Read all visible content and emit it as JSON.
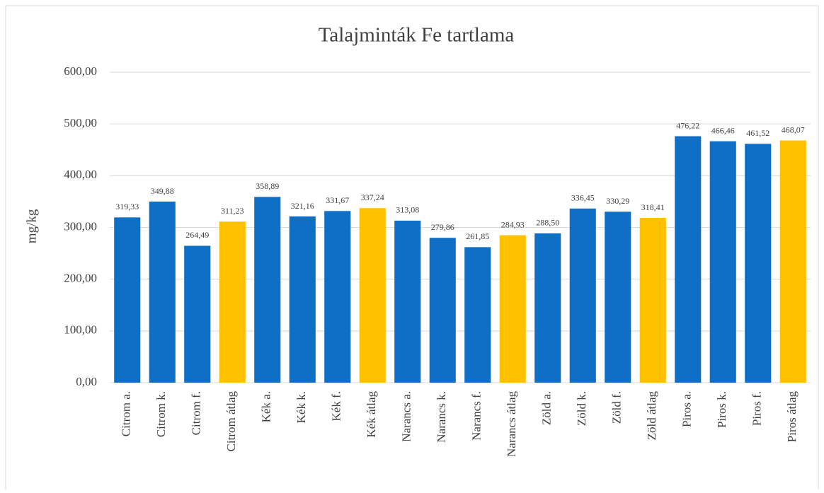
{
  "chart_data": {
    "type": "bar",
    "title": "Talajminták  Fe tartlama",
    "y_label": "mg/kg",
    "categories": [
      "Citrom a.",
      "Citrom k.",
      "Citrom f.",
      "Citrom átlag",
      "Kék a.",
      "Kék k.",
      "Kék f.",
      "Kék átlag",
      "Narancs a.",
      "Narancs k.",
      "Narancs f.",
      "Narancs átlag",
      "Zöld a.",
      "Zöld k.",
      "Zöld f.",
      "Zöld átlag",
      "Piros a.",
      "Piros k.",
      "Piros f.",
      "Piros átlag"
    ],
    "values": [
      319.33,
      349.88,
      264.49,
      311.23,
      358.89,
      321.16,
      331.67,
      337.24,
      313.08,
      279.86,
      261.85,
      284.93,
      288.5,
      336.45,
      330.29,
      318.41,
      476.22,
      466.46,
      461.52,
      468.07
    ],
    "value_labels": [
      "319,33",
      "349,88",
      "264,49",
      "311,23",
      "358,89",
      "321,16",
      "331,67",
      "337,24",
      "313,08",
      "279,86",
      "261,85",
      "284,93",
      "288,50",
      "336,45",
      "330,29",
      "318,41",
      "476,22",
      "466,46",
      "461,52",
      "468,07"
    ],
    "colors": [
      "#0f6fc6",
      "#0f6fc6",
      "#0f6fc6",
      "#ffc000",
      "#0f6fc6",
      "#0f6fc6",
      "#0f6fc6",
      "#ffc000",
      "#0f6fc6",
      "#0f6fc6",
      "#0f6fc6",
      "#ffc000",
      "#0f6fc6",
      "#0f6fc6",
      "#0f6fc6",
      "#ffc000",
      "#0f6fc6",
      "#0f6fc6",
      "#0f6fc6",
      "#ffc000"
    ],
    "ylim": [
      0,
      600
    ],
    "yticks": [
      {
        "value": 0,
        "label": "0,00"
      },
      {
        "value": 100,
        "label": "100,00"
      },
      {
        "value": 200,
        "label": "200,00"
      },
      {
        "value": 300,
        "label": "300,00"
      },
      {
        "value": 400,
        "label": "400,00"
      },
      {
        "value": 500,
        "label": "500,00"
      },
      {
        "value": 600,
        "label": "600,00"
      }
    ],
    "grid": true
  }
}
